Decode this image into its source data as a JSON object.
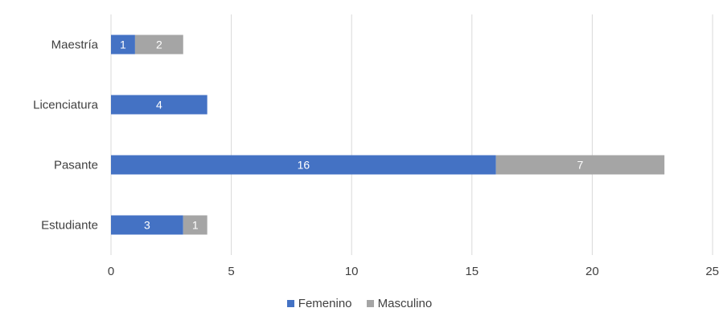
{
  "chart_data": {
    "type": "bar",
    "orientation": "horizontal",
    "stacked": true,
    "categories": [
      "Estudiante",
      "Pasante",
      "Licenciatura",
      "Maestría"
    ],
    "series": [
      {
        "name": "Femenino",
        "color": "#4472C4",
        "values": [
          3,
          16,
          4,
          1
        ]
      },
      {
        "name": "Masculino",
        "color": "#A5A5A5",
        "values": [
          1,
          7,
          0,
          2
        ]
      }
    ],
    "xlim": [
      0,
      25
    ],
    "xticks": [
      "0",
      "5",
      "10",
      "15",
      "20",
      "25"
    ],
    "grid": "vertical",
    "legend": "bottom",
    "data_labels": true,
    "title": "",
    "xlabel": "",
    "ylabel": ""
  }
}
